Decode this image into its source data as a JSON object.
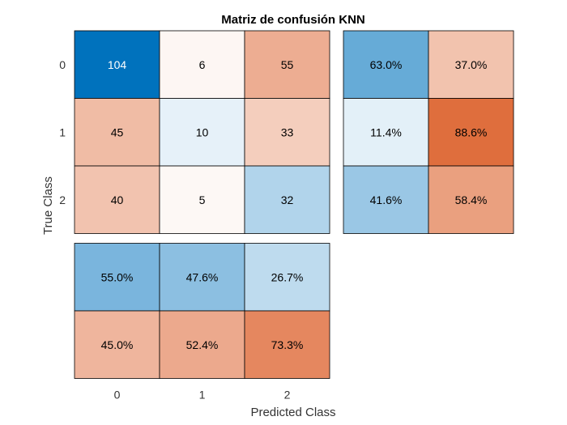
{
  "chart_data": {
    "type": "heatmap",
    "title": "Matriz de confusión KNN",
    "xlabel": "Predicted Class",
    "ylabel": "True Class",
    "class_labels": [
      "0",
      "1",
      "2"
    ],
    "matrix": [
      [
        104,
        6,
        55
      ],
      [
        45,
        10,
        33
      ],
      [
        40,
        5,
        32
      ]
    ],
    "row_summary": [
      [
        "63.0%",
        "37.0%"
      ],
      [
        "11.4%",
        "88.6%"
      ],
      [
        "41.6%",
        "58.4%"
      ]
    ],
    "column_summary": [
      [
        "55.0%",
        "47.6%",
        "26.7%"
      ],
      [
        "45.0%",
        "52.4%",
        "73.3%"
      ]
    ],
    "colors": {
      "positive": "#0072bd",
      "negative": "#d95319",
      "zero": "#ffffff",
      "grid": "#000000",
      "text_light": "#ffffff",
      "text_dark": "#000000"
    }
  }
}
